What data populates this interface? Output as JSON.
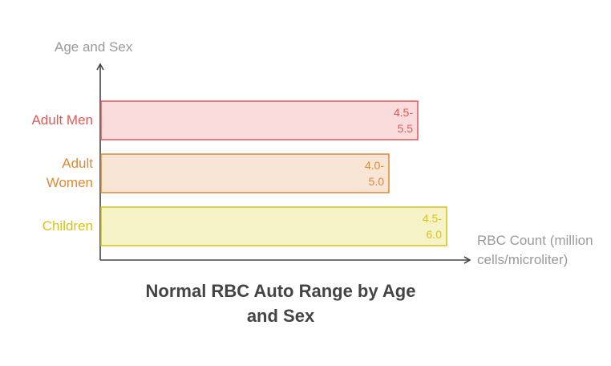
{
  "chart_data": {
    "type": "range-bar",
    "title": "Normal RBC Auto Range by Age and Sex",
    "y_label": "Age and Sex",
    "x_label": "RBC Count (million cells/microliter)",
    "categories": [
      "Adult Men",
      "Adult Women",
      "Children"
    ],
    "values": [
      [
        4.5,
        5.5
      ],
      [
        4.0,
        5.0
      ],
      [
        4.5,
        6.0
      ]
    ],
    "value_labels": [
      "4.5-5.5",
      "4.0-5.0",
      "4.5-6.0"
    ],
    "colors": [
      "#e05a5a",
      "#dd8a35",
      "#d6c21a"
    ],
    "fills": [
      "#fadcdc",
      "#f8e5d5",
      "#f7f3c8"
    ]
  }
}
